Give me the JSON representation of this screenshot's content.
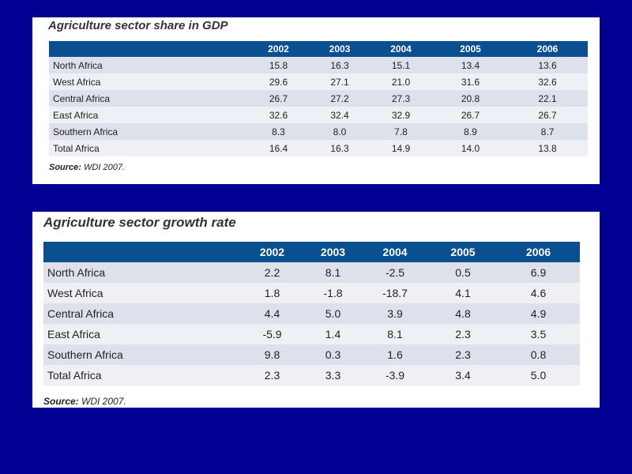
{
  "tables": [
    {
      "title": "Agriculture sector share in GDP",
      "columns": [
        "2002",
        "2003",
        "2004",
        "2005",
        "2006"
      ],
      "rows": [
        {
          "label": "North Africa",
          "values": [
            "15.8",
            "16.3",
            "15.1",
            "13.4",
            "13.6"
          ]
        },
        {
          "label": "West Africa",
          "values": [
            "29.6",
            "27.1",
            "21.0",
            "31.6",
            "32.6"
          ]
        },
        {
          "label": "Central Africa",
          "values": [
            "26.7",
            "27.2",
            "27.3",
            "20.8",
            "22.1"
          ]
        },
        {
          "label": "East Africa",
          "values": [
            "32.6",
            "32.4",
            "32.9",
            "26.7",
            "26.7"
          ]
        },
        {
          "label": "Southern Africa",
          "values": [
            "8.3",
            "8.0",
            "7.8",
            "8.9",
            "8.7"
          ]
        },
        {
          "label": "Total Africa",
          "values": [
            "16.4",
            "16.3",
            "14.9",
            "14.0",
            "13.8"
          ]
        }
      ],
      "source_label": "Source:",
      "source_text": " WDI 2007."
    },
    {
      "title": "Agriculture sector growth rate",
      "columns": [
        "2002",
        "2003",
        "2004",
        "2005",
        "2006"
      ],
      "rows": [
        {
          "label": "North Africa",
          "values": [
            "2.2",
            "8.1",
            "-2.5",
            "0.5",
            "6.9"
          ]
        },
        {
          "label": "West Africa",
          "values": [
            "1.8",
            "-1.8",
            "-18.7",
            "4.1",
            "4.6"
          ]
        },
        {
          "label": "Central Africa",
          "values": [
            "4.4",
            "5.0",
            "3.9",
            "4.8",
            "4.9"
          ]
        },
        {
          "label": "East Africa",
          "values": [
            "-5.9",
            "1.4",
            "8.1",
            "2.3",
            "3.5"
          ]
        },
        {
          "label": "Southern Africa",
          "values": [
            "9.8",
            "0.3",
            "1.6",
            "2.3",
            "0.8"
          ]
        },
        {
          "label": "Total Africa",
          "values": [
            "2.3",
            "3.3",
            "-3.9",
            "3.4",
            "5.0"
          ]
        }
      ],
      "source_label": "Source:",
      "source_text": " WDI 2007."
    }
  ]
}
